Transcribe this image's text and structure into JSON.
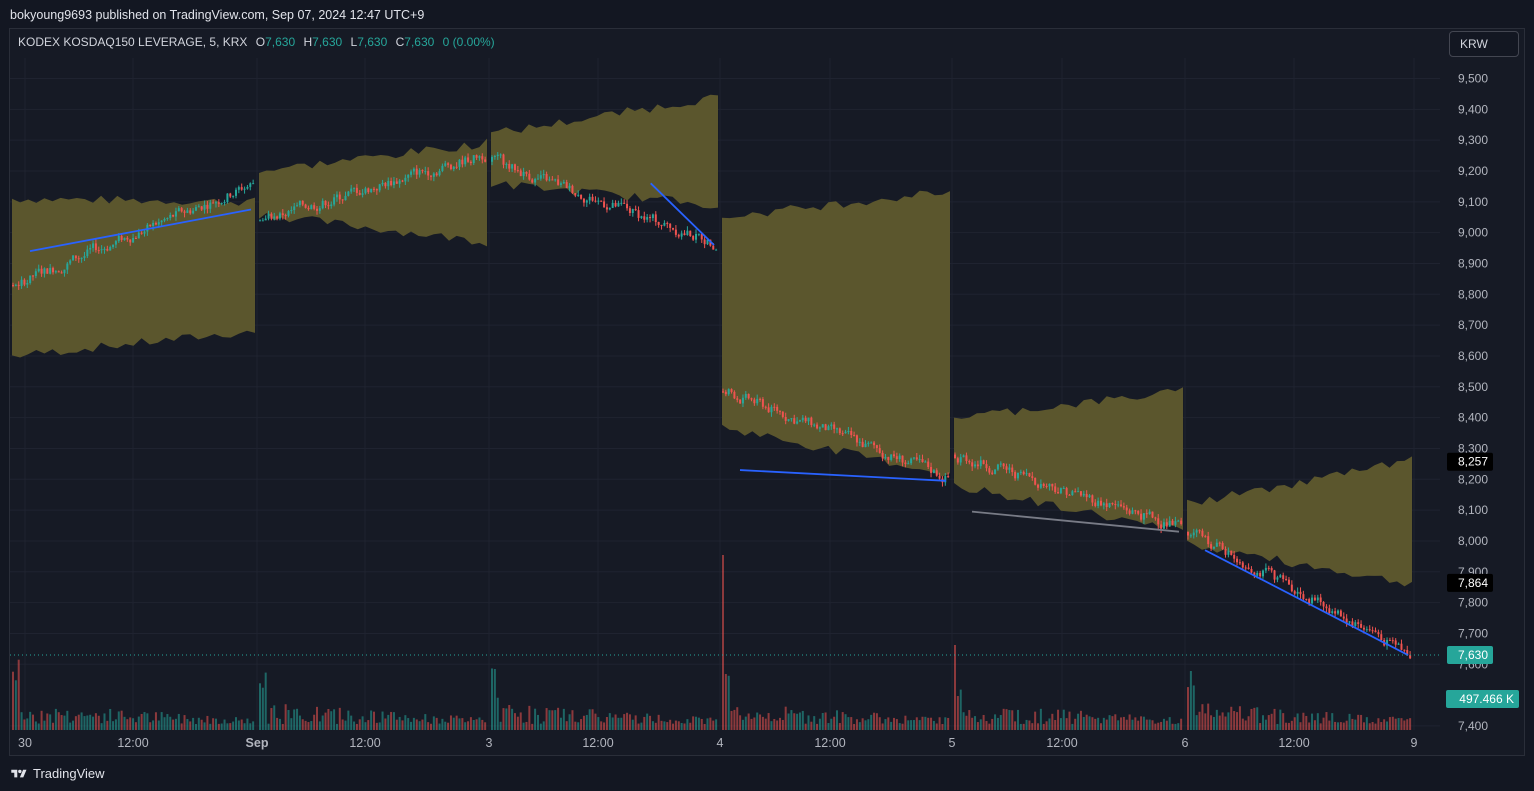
{
  "header": {
    "published_text": "bokyoung9693 published on TradingView.com, Sep 07, 2024 12:47 UTC+9"
  },
  "legend": {
    "symbol": "KODEX KOSDAQ150 LEVERAGE, 5, KRX",
    "o_label": "O",
    "o_value": "7,630",
    "h_label": "H",
    "h_value": "7,630",
    "l_label": "L",
    "l_value": "7,630",
    "c_label": "C",
    "c_value": "7,630",
    "change": "0 (0.00%)"
  },
  "currency_button": "KRW",
  "brand": {
    "name": "TradingView"
  },
  "colors": {
    "up": "#26a69a",
    "down": "#ef5350",
    "band": "#5f5a2d",
    "trend": "#2962ff",
    "trend_gray": "#787b86",
    "background": "#161a25"
  },
  "chart_data": {
    "type": "candlestick",
    "interval": "5 minutes",
    "y_axis": {
      "range": [
        7370,
        9570
      ],
      "ticks": [
        "9,500",
        "9,400",
        "9,300",
        "9,200",
        "9,100",
        "9,000",
        "8,900",
        "8,800",
        "8,700",
        "8,600",
        "8,500",
        "8,400",
        "8,300",
        "8,200",
        "8,100",
        "8,000",
        "7,900",
        "7,800",
        "7,700",
        "7,600",
        "7,400"
      ],
      "tick_values": [
        9500,
        9400,
        9300,
        9200,
        9100,
        9000,
        8900,
        8800,
        8700,
        8600,
        8500,
        8400,
        8300,
        8200,
        8100,
        8000,
        7900,
        7800,
        7700,
        7600,
        7400
      ]
    },
    "x_axis": {
      "ticks": [
        "30",
        "12:00",
        "Sep",
        "12:00",
        "3",
        "12:00",
        "4",
        "12:00",
        "5",
        "12:00",
        "6",
        "12:00",
        "9"
      ]
    },
    "grid": true,
    "price_labels": [
      {
        "value": 8257,
        "text": "8,257",
        "style": "black"
      },
      {
        "value": 7864,
        "text": "7,864",
        "style": "black"
      },
      {
        "value": 7630,
        "text": "7,630",
        "style": "last"
      }
    ],
    "volume_label": "497.466 K",
    "sessions": [
      {
        "session": "Aug 30",
        "open": 8830,
        "close": 9165,
        "high": 9180,
        "low": 8800,
        "band_upper_start": 9110,
        "band_upper_end": 9100,
        "band_lower_start": 8600,
        "band_lower_end": 8680,
        "trend_start": 8940,
        "trend_end": 9075
      },
      {
        "session": "Sep 2",
        "open": 9040,
        "close": 9260,
        "high": 9330,
        "low": 9040,
        "band_upper_start": 9200,
        "band_upper_end": 9290,
        "band_lower_start": 9060,
        "band_lower_end": 8970,
        "trend_start": null,
        "trend_end": null
      },
      {
        "session": "Sep 3",
        "open": 9230,
        "close": 8960,
        "high": 9350,
        "low": 8945,
        "band_upper_start": 9320,
        "band_upper_end": 9440,
        "band_lower_start": 9160,
        "band_lower_end": 9090,
        "trend_start": null,
        "trend_end": 8960
      },
      {
        "session": "Sep 4",
        "open": 8485,
        "close": 8200,
        "high": 8495,
        "low": 8110,
        "band_upper_start": 9050,
        "band_upper_end": 9135,
        "band_lower_start": 8370,
        "band_lower_end": 8215,
        "trend_start": 8230,
        "trend_end": 8195
      },
      {
        "session": "Sep 5",
        "open": 8280,
        "close": 8040,
        "high": 8350,
        "low": 7880,
        "band_upper_start": 8400,
        "band_upper_end": 8485,
        "band_lower_start": 8180,
        "band_lower_end": 8030,
        "trend_start": 8095,
        "trend_end": 8030
      },
      {
        "session": "Sep 6",
        "open": 8030,
        "close": 7630,
        "high": 8040,
        "low": 7595,
        "band_upper_start": 8120,
        "band_upper_end": 8260,
        "band_lower_start": 7990,
        "band_lower_end": 7860,
        "trend_start": 7970,
        "trend_end": 7630
      }
    ]
  }
}
